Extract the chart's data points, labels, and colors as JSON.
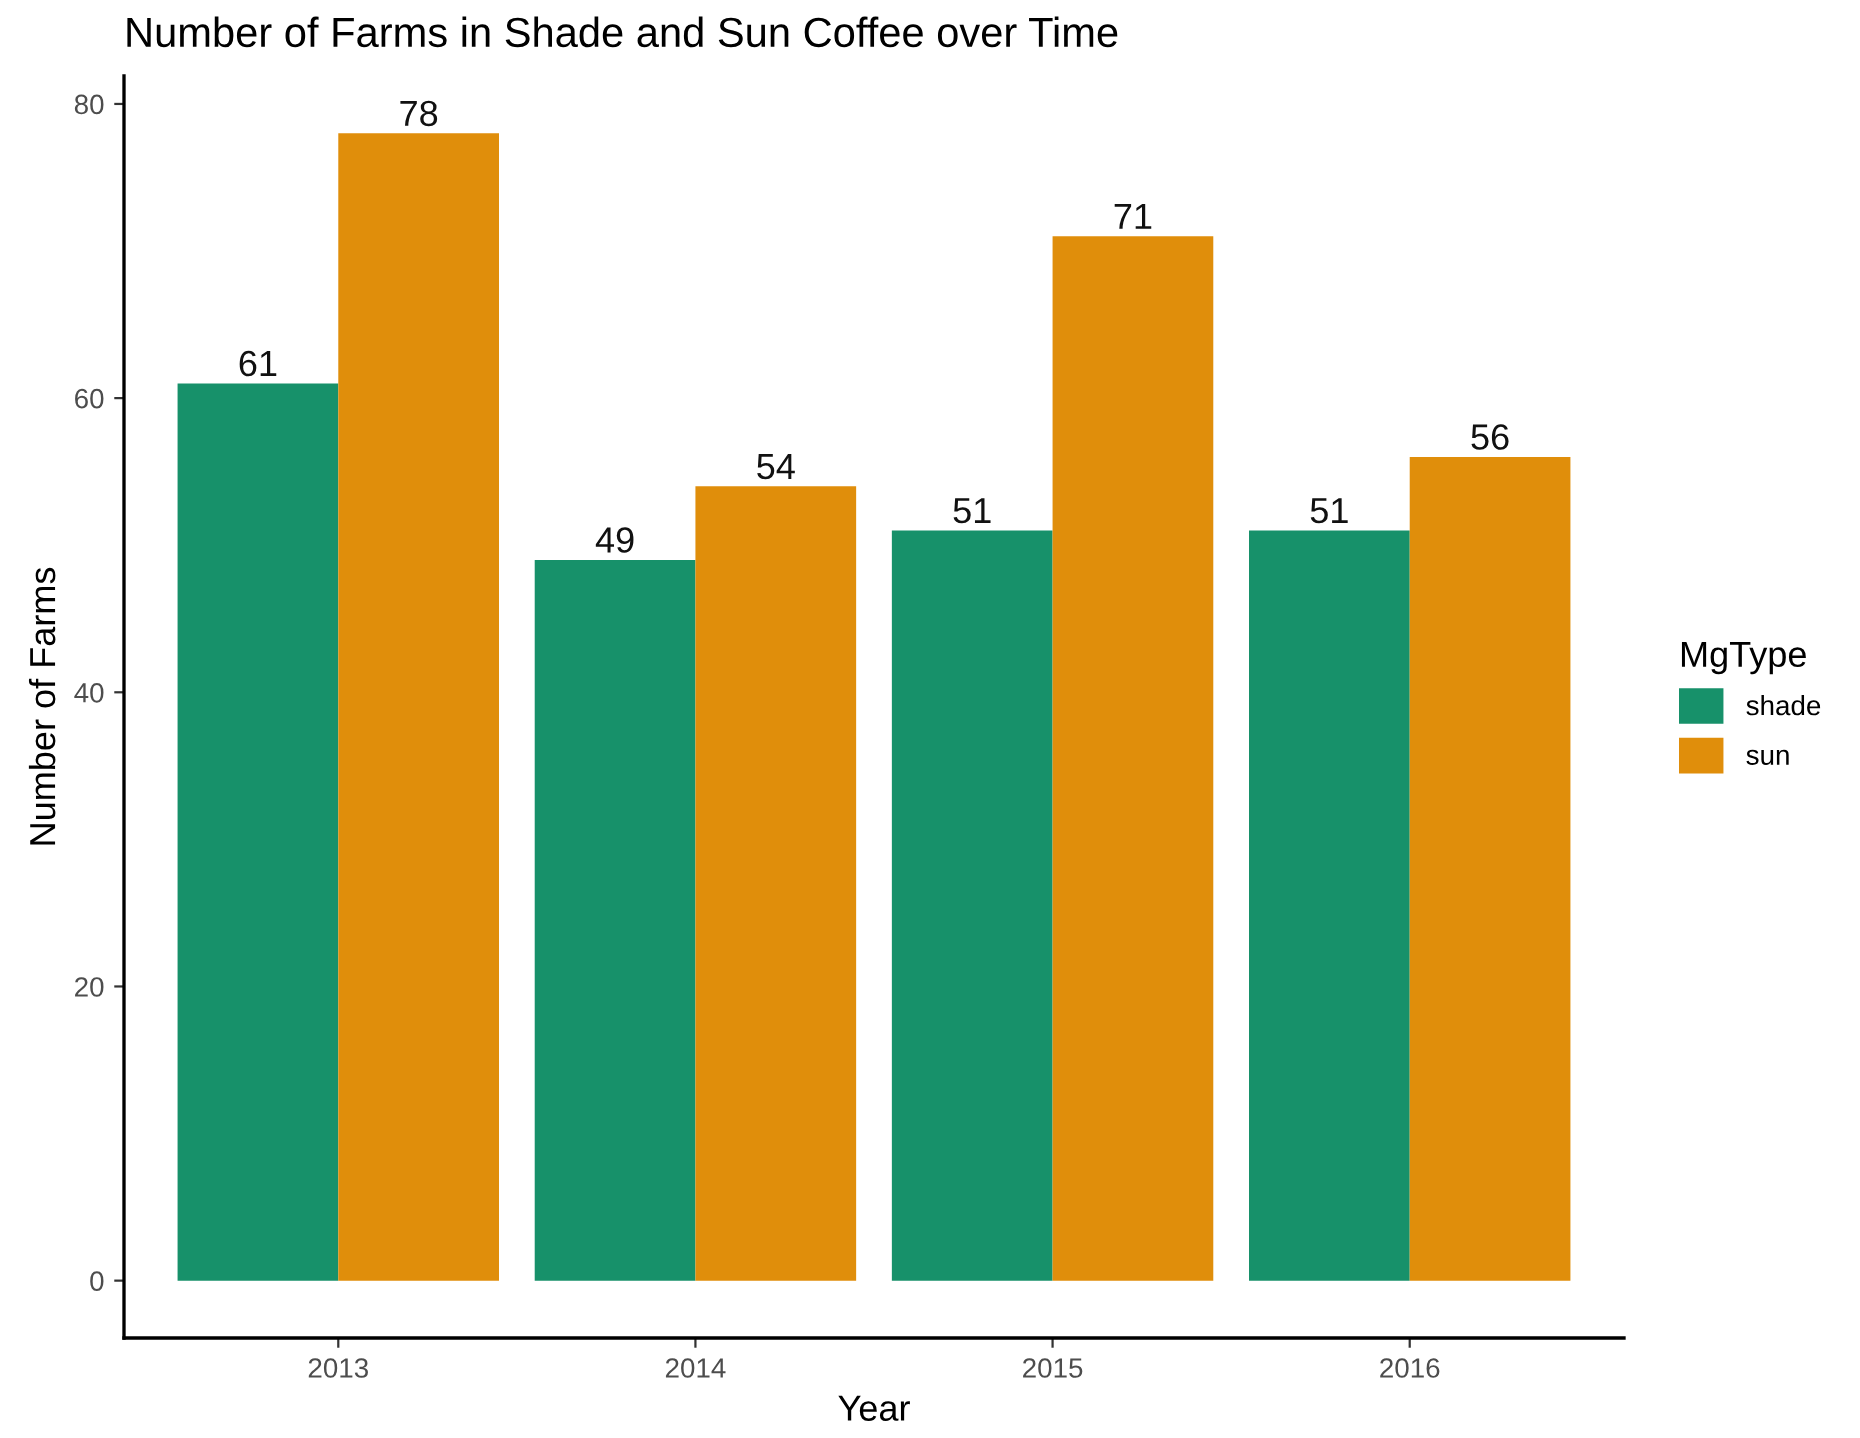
{
  "chart_data": {
    "type": "bar",
    "title": "Number of Farms in Shade and Sun Coffee over Time",
    "xlabel": "Year",
    "ylabel": "Number of Farms",
    "legend_title": "MgType",
    "categories": [
      "2013",
      "2014",
      "2015",
      "2016"
    ],
    "series": [
      {
        "name": "shade",
        "color": "#17916a",
        "values": [
          61,
          49,
          51,
          51
        ]
      },
      {
        "name": "sun",
        "color": "#e08e0b",
        "values": [
          78,
          54,
          71,
          56
        ]
      }
    ],
    "ylim": [
      -3.9,
      81.9
    ],
    "yticks": [
      0,
      20,
      40,
      60,
      80
    ],
    "grid": false,
    "legend": "right",
    "data_labels": true
  }
}
